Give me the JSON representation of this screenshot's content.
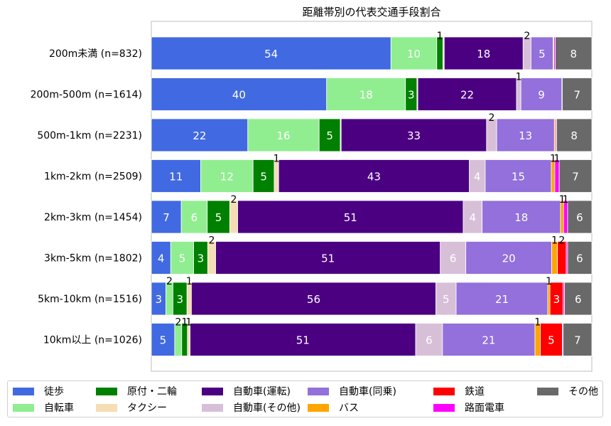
{
  "chart_data": {
    "type": "bar",
    "orientation": "horizontal",
    "stacked": true,
    "title": "距離帯別の代表交通手段割合",
    "xlim": [
      0,
      100
    ],
    "categories": [
      "200m未満 (n=832)",
      "200m-500m (n=1614)",
      "500m-1km (n=2231)",
      "1km-2km (n=2509)",
      "2km-3km (n=1454)",
      "3km-5km (n=1802)",
      "5km-10km (n=1516)",
      "10km以上 (n=1026)"
    ],
    "series": [
      {
        "name": "徒歩",
        "color": "#4169e1",
        "values": [
          54.4,
          39.8,
          21.9,
          11.2,
          6.8,
          4.4,
          3.3,
          5.3
        ]
      },
      {
        "name": "自転車",
        "color": "#90ee90",
        "values": [
          10.4,
          17.9,
          16.2,
          11.9,
          5.9,
          5.2,
          1.6,
          1.6
        ]
      },
      {
        "name": "原付・二輪",
        "color": "#008000",
        "values": [
          1.4,
          2.6,
          4.8,
          4.8,
          5.1,
          3.2,
          3.2,
          1.3
        ]
      },
      {
        "name": "タクシー",
        "color": "#f5deb3",
        "values": [
          0.3,
          0.2,
          0.2,
          1.0,
          1.8,
          1.8,
          1.0,
          0.6
        ]
      },
      {
        "name": "自動車(運転)",
        "color": "#4b0082",
        "values": [
          17.9,
          22.4,
          33.0,
          43.3,
          51.2,
          51.0,
          55.5,
          51.2
        ]
      },
      {
        "name": "自動車(その他)",
        "color": "#d8bfd8",
        "values": [
          1.8,
          1.0,
          2.3,
          3.6,
          4.3,
          5.8,
          4.6,
          6.1
        ]
      },
      {
        "name": "自動車(同乗)",
        "color": "#9370db",
        "values": [
          5.0,
          9.3,
          13.1,
          15.0,
          17.8,
          19.5,
          20.8,
          21.0
        ]
      },
      {
        "name": "バス",
        "color": "#ffa500",
        "values": [
          0.2,
          0.1,
          0.3,
          0.8,
          0.7,
          1.3,
          0.5,
          1.2
        ]
      },
      {
        "name": "鉄道",
        "color": "#ff0000",
        "values": [
          0.0,
          0.0,
          0.0,
          0.0,
          0.0,
          2.0,
          3.0,
          5.0
        ]
      },
      {
        "name": "路面電車",
        "color": "#ff00ff",
        "values": [
          0.3,
          0.0,
          0.2,
          1.0,
          0.9,
          0.3,
          0.3,
          0.2
        ]
      },
      {
        "name": "その他",
        "color": "#696969",
        "values": [
          8.3,
          6.7,
          8.0,
          7.4,
          5.5,
          5.5,
          6.2,
          6.5
        ]
      }
    ],
    "data_label_rule": "segments labelled with rounded value; very small segments (value 1-2) show label above the bar in black",
    "legend_position": "bottom",
    "grid": false
  }
}
